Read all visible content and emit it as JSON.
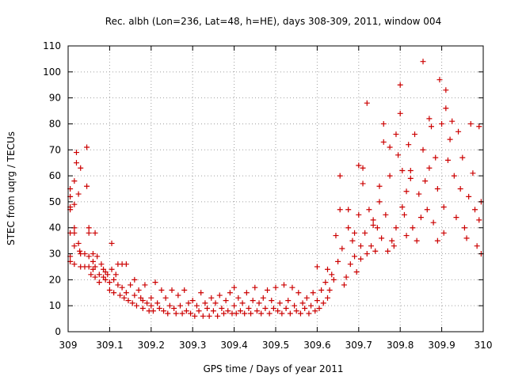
{
  "chart_data": {
    "type": "scatter",
    "title": "Rec. albh (Lon=236, Lat=48, h=HE), days 308-309, 2011, window 004",
    "xlabel": "GPS time / Days of year 2011",
    "ylabel": "STEC from uqrg / TECUs",
    "xlim": [
      309,
      310
    ],
    "ylim": [
      0,
      110
    ],
    "x_ticks": [
      309,
      309.1,
      309.2,
      309.3,
      309.4,
      309.5,
      309.6,
      309.7,
      309.8,
      309.9,
      310
    ],
    "x_tick_labels": [
      "309",
      "309.1",
      "309.2",
      "309.3",
      "309.4",
      "309.5",
      "309.6",
      "309.7",
      "309.8",
      "309.9",
      "310"
    ],
    "y_ticks": [
      0,
      10,
      20,
      30,
      40,
      50,
      60,
      70,
      80,
      90,
      100,
      110
    ],
    "y_tick_labels": [
      "0",
      "10",
      "20",
      "30",
      "40",
      "50",
      "60",
      "70",
      "80",
      "90",
      "100",
      "110"
    ],
    "grid": true,
    "marker": "+",
    "color": "#cc0000",
    "series": [
      {
        "points": [
          [
            309.005,
            55
          ],
          [
            309.005,
            52
          ],
          [
            309.005,
            48
          ],
          [
            309.005,
            47
          ],
          [
            309.005,
            38
          ],
          [
            309.005,
            29
          ],
          [
            309.005,
            27
          ],
          [
            309.015,
            58
          ],
          [
            309.015,
            49
          ],
          [
            309.015,
            40
          ],
          [
            309.015,
            38
          ],
          [
            309.015,
            33
          ],
          [
            309.015,
            26
          ],
          [
            309.02,
            69
          ],
          [
            309.02,
            65
          ],
          [
            309.025,
            53
          ],
          [
            309.025,
            34
          ],
          [
            309.028,
            31
          ],
          [
            309.03,
            63
          ],
          [
            309.03,
            30
          ],
          [
            309.03,
            25
          ],
          [
            309.04,
            30
          ],
          [
            309.04,
            25
          ],
          [
            309.045,
            71
          ],
          [
            309.045,
            56
          ],
          [
            309.05,
            40
          ],
          [
            309.05,
            38
          ],
          [
            309.05,
            29
          ],
          [
            309.05,
            25
          ],
          [
            309.055,
            22
          ],
          [
            309.06,
            30
          ],
          [
            309.06,
            27
          ],
          [
            309.06,
            24
          ],
          [
            309.065,
            38
          ],
          [
            309.065,
            25
          ],
          [
            309.065,
            21
          ],
          [
            309.07,
            29
          ],
          [
            309.075,
            19
          ],
          [
            309.075,
            22
          ],
          [
            309.08,
            26
          ],
          [
            309.085,
            24
          ],
          [
            309.085,
            21
          ],
          [
            309.09,
            23
          ],
          [
            309.09,
            20
          ],
          [
            309.095,
            22
          ],
          [
            309.1,
            19
          ],
          [
            309.1,
            16
          ],
          [
            309.105,
            34
          ],
          [
            309.105,
            24
          ],
          [
            309.11,
            15
          ],
          [
            309.11,
            20
          ],
          [
            309.115,
            22
          ],
          [
            309.12,
            26
          ],
          [
            309.12,
            18
          ],
          [
            309.125,
            14
          ],
          [
            309.13,
            17
          ],
          [
            309.13,
            26
          ],
          [
            309.135,
            13
          ],
          [
            309.14,
            26
          ],
          [
            309.14,
            15
          ],
          [
            309.145,
            12
          ],
          [
            309.15,
            18
          ],
          [
            309.155,
            11
          ],
          [
            309.16,
            20
          ],
          [
            309.16,
            14
          ],
          [
            309.165,
            10
          ],
          [
            309.17,
            16
          ],
          [
            309.175,
            13
          ],
          [
            309.18,
            9
          ],
          [
            309.18,
            12
          ],
          [
            309.185,
            18
          ],
          [
            309.19,
            11
          ],
          [
            309.195,
            8
          ],
          [
            309.2,
            13
          ],
          [
            309.2,
            10
          ],
          [
            309.205,
            8
          ],
          [
            309.21,
            19
          ],
          [
            309.215,
            11
          ],
          [
            309.22,
            9
          ],
          [
            309.225,
            16
          ],
          [
            309.23,
            8
          ],
          [
            309.235,
            13
          ],
          [
            309.24,
            7
          ],
          [
            309.245,
            10
          ],
          [
            309.25,
            16
          ],
          [
            309.255,
            9
          ],
          [
            309.26,
            7
          ],
          [
            309.265,
            14
          ],
          [
            309.27,
            10
          ],
          [
            309.275,
            7
          ],
          [
            309.28,
            16
          ],
          [
            309.285,
            8
          ],
          [
            309.29,
            11
          ],
          [
            309.295,
            7
          ],
          [
            309.3,
            12
          ],
          [
            309.305,
            6
          ],
          [
            309.31,
            10
          ],
          [
            309.315,
            8
          ],
          [
            309.32,
            15
          ],
          [
            309.325,
            6
          ],
          [
            309.33,
            11
          ],
          [
            309.335,
            9
          ],
          [
            309.34,
            6
          ],
          [
            309.345,
            13
          ],
          [
            309.35,
            8
          ],
          [
            309.355,
            11
          ],
          [
            309.36,
            6
          ],
          [
            309.365,
            14
          ],
          [
            309.37,
            9
          ],
          [
            309.375,
            7
          ],
          [
            309.38,
            12
          ],
          [
            309.385,
            8
          ],
          [
            309.39,
            15
          ],
          [
            309.395,
            7
          ],
          [
            309.4,
            17
          ],
          [
            309.4,
            10
          ],
          [
            309.405,
            7
          ],
          [
            309.41,
            13
          ],
          [
            309.415,
            8
          ],
          [
            309.42,
            11
          ],
          [
            309.425,
            7
          ],
          [
            309.43,
            15
          ],
          [
            309.435,
            9
          ],
          [
            309.44,
            7
          ],
          [
            309.445,
            12
          ],
          [
            309.45,
            17
          ],
          [
            309.455,
            8
          ],
          [
            309.46,
            11
          ],
          [
            309.465,
            7
          ],
          [
            309.47,
            13
          ],
          [
            309.475,
            9
          ],
          [
            309.48,
            16
          ],
          [
            309.485,
            7
          ],
          [
            309.49,
            12
          ],
          [
            309.495,
            9
          ],
          [
            309.5,
            17
          ],
          [
            309.505,
            8
          ],
          [
            309.51,
            11
          ],
          [
            309.515,
            7
          ],
          [
            309.52,
            18
          ],
          [
            309.525,
            9
          ],
          [
            309.53,
            12
          ],
          [
            309.535,
            7
          ],
          [
            309.54,
            17
          ],
          [
            309.545,
            10
          ],
          [
            309.55,
            8
          ],
          [
            309.555,
            15
          ],
          [
            309.56,
            7
          ],
          [
            309.565,
            11
          ],
          [
            309.57,
            9
          ],
          [
            309.575,
            13
          ],
          [
            309.58,
            7
          ],
          [
            309.585,
            10
          ],
          [
            309.59,
            15
          ],
          [
            309.595,
            8
          ],
          [
            309.6,
            25
          ],
          [
            309.6,
            12
          ],
          [
            309.605,
            9
          ],
          [
            309.61,
            16
          ],
          [
            309.615,
            11
          ],
          [
            309.62,
            19
          ],
          [
            309.625,
            24
          ],
          [
            309.625,
            13
          ],
          [
            309.63,
            16
          ],
          [
            309.635,
            22
          ],
          [
            309.64,
            20
          ],
          [
            309.645,
            37
          ],
          [
            309.65,
            27
          ],
          [
            309.655,
            47
          ],
          [
            309.655,
            60
          ],
          [
            309.66,
            32
          ],
          [
            309.665,
            18
          ],
          [
            309.67,
            21
          ],
          [
            309.675,
            47
          ],
          [
            309.675,
            40
          ],
          [
            309.68,
            26
          ],
          [
            309.685,
            35
          ],
          [
            309.69,
            29
          ],
          [
            309.69,
            38
          ],
          [
            309.695,
            23
          ],
          [
            309.7,
            64
          ],
          [
            309.7,
            45
          ],
          [
            309.705,
            28
          ],
          [
            309.705,
            33
          ],
          [
            309.71,
            57
          ],
          [
            309.71,
            63
          ],
          [
            309.715,
            38
          ],
          [
            309.72,
            30
          ],
          [
            309.72,
            88
          ],
          [
            309.725,
            47
          ],
          [
            309.73,
            33
          ],
          [
            309.735,
            43
          ],
          [
            309.735,
            41
          ],
          [
            309.74,
            31
          ],
          [
            309.745,
            40
          ],
          [
            309.75,
            56
          ],
          [
            309.75,
            50
          ],
          [
            309.755,
            36
          ],
          [
            309.76,
            80
          ],
          [
            309.76,
            73
          ],
          [
            309.765,
            45
          ],
          [
            309.77,
            31
          ],
          [
            309.775,
            60
          ],
          [
            309.775,
            71
          ],
          [
            309.78,
            35
          ],
          [
            309.785,
            33
          ],
          [
            309.79,
            40
          ],
          [
            309.79,
            76
          ],
          [
            309.795,
            68
          ],
          [
            309.8,
            95
          ],
          [
            309.8,
            84
          ],
          [
            309.805,
            48
          ],
          [
            309.805,
            62
          ],
          [
            309.81,
            45
          ],
          [
            309.815,
            37
          ],
          [
            309.815,
            54
          ],
          [
            309.82,
            72
          ],
          [
            309.825,
            62
          ],
          [
            309.825,
            59
          ],
          [
            309.83,
            40
          ],
          [
            309.835,
            76
          ],
          [
            309.84,
            35
          ],
          [
            309.845,
            53
          ],
          [
            309.85,
            44
          ],
          [
            309.855,
            104
          ],
          [
            309.855,
            70
          ],
          [
            309.86,
            58
          ],
          [
            309.865,
            47
          ],
          [
            309.87,
            82
          ],
          [
            309.87,
            63
          ],
          [
            309.875,
            79
          ],
          [
            309.88,
            42
          ],
          [
            309.885,
            67
          ],
          [
            309.89,
            55
          ],
          [
            309.89,
            35
          ],
          [
            309.895,
            97
          ],
          [
            309.9,
            80
          ],
          [
            309.905,
            48
          ],
          [
            309.905,
            38
          ],
          [
            309.91,
            93
          ],
          [
            309.91,
            86
          ],
          [
            309.915,
            66
          ],
          [
            309.92,
            74
          ],
          [
            309.925,
            81
          ],
          [
            309.93,
            60
          ],
          [
            309.935,
            44
          ],
          [
            309.94,
            77
          ],
          [
            309.945,
            55
          ],
          [
            309.95,
            67
          ],
          [
            309.955,
            40
          ],
          [
            309.96,
            36
          ],
          [
            309.965,
            52
          ],
          [
            309.97,
            80
          ],
          [
            309.975,
            61
          ],
          [
            309.98,
            47
          ],
          [
            309.985,
            33
          ],
          [
            309.99,
            79
          ],
          [
            309.99,
            43
          ],
          [
            309.995,
            30
          ],
          [
            309.995,
            50
          ]
        ]
      }
    ]
  }
}
